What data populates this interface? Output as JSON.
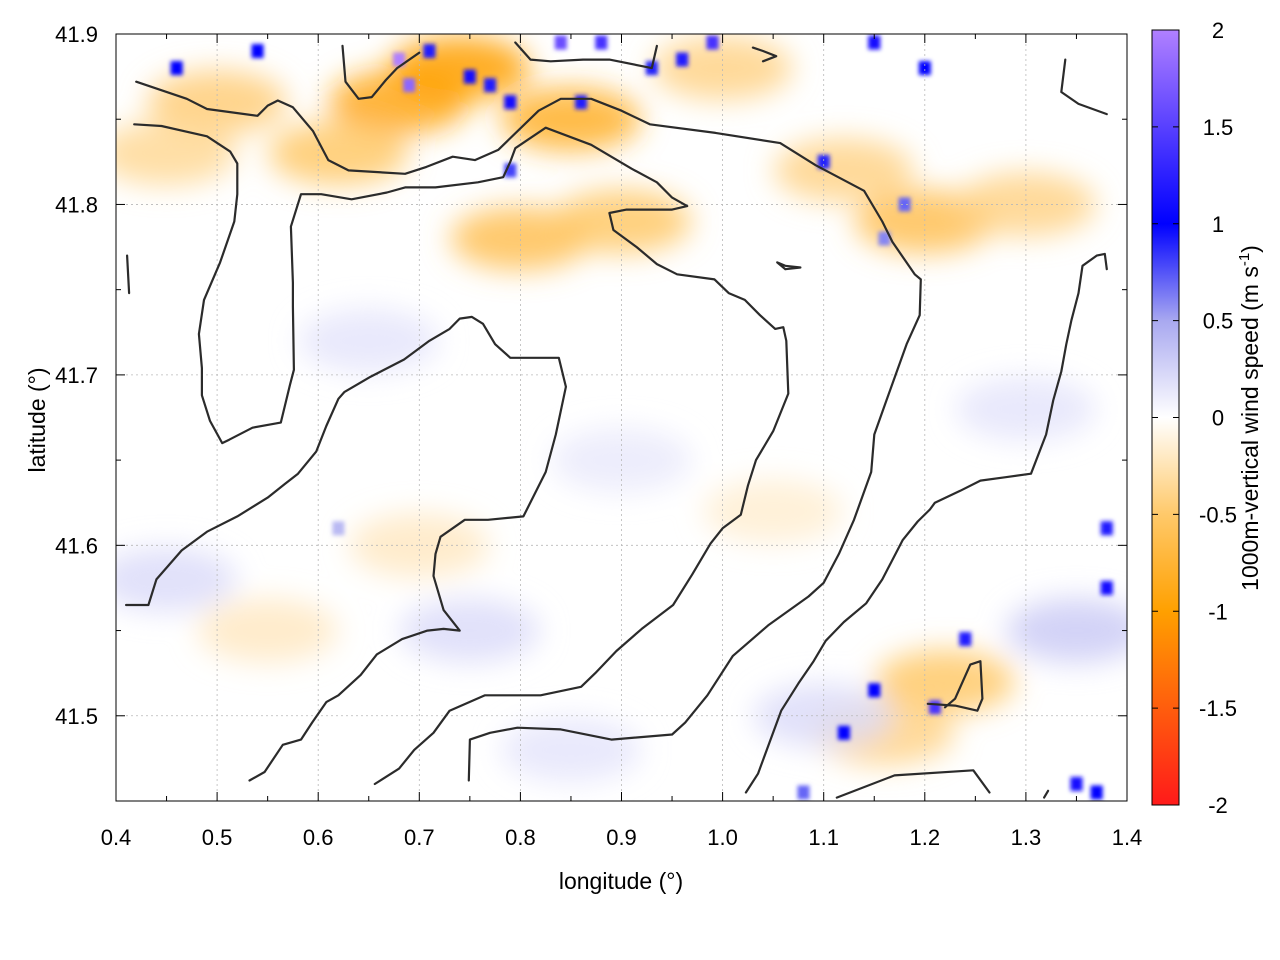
{
  "chart_data": {
    "type": "heatmap",
    "xlabel": "longitude (°)",
    "ylabel": "latitude (°)",
    "colorbar_label": {
      "main": "1000m-vertical wind speed (m s",
      "superscript": "-1",
      "close": ")"
    },
    "xlim": [
      0.4,
      1.4
    ],
    "ylim": [
      41.45,
      41.9
    ],
    "x_ticks": [
      "0.4",
      "0.5",
      "0.6",
      "0.7",
      "0.8",
      "0.9",
      "1.0",
      "1.1",
      "1.2",
      "1.3",
      "1.4"
    ],
    "x_tick_values": [
      0.4,
      0.5,
      0.6,
      0.7,
      0.8,
      0.9,
      1.0,
      1.1,
      1.2,
      1.3,
      1.4
    ],
    "y_ticks": [
      "41.5",
      "41.6",
      "41.7",
      "41.8",
      "41.9"
    ],
    "y_tick_values": [
      41.5,
      41.6,
      41.7,
      41.8,
      41.9
    ],
    "colorbar_ticks": [
      "2",
      "1.5",
      "1",
      "0.5",
      "0",
      "-0.5",
      "-1",
      "-1.5",
      "-2"
    ],
    "colorbar_tick_values": [
      2,
      1.5,
      1,
      0.5,
      0,
      -0.5,
      -1,
      -1.5,
      -2
    ],
    "color_range": [
      -2,
      2
    ],
    "colormap": [
      {
        "value": -2.0,
        "color": "#ff1a1a"
      },
      {
        "value": -1.0,
        "color": "#ffa000"
      },
      {
        "value": -0.5,
        "color": "#ffc96a"
      },
      {
        "value": 0.0,
        "color": "#ffffff"
      },
      {
        "value": 0.5,
        "color": "#a8a8f0"
      },
      {
        "value": 1.0,
        "color": "#0000ff"
      },
      {
        "value": 2.0,
        "color": "#b080ff"
      }
    ],
    "grid": true,
    "field_hotspots": [
      {
        "x": 0.68,
        "y": 41.86,
        "value": -0.9
      },
      {
        "x": 0.74,
        "y": 41.88,
        "value": -1.0
      },
      {
        "x": 0.85,
        "y": 41.85,
        "value": -0.8
      },
      {
        "x": 0.62,
        "y": 41.83,
        "value": -0.5
      },
      {
        "x": 0.8,
        "y": 41.78,
        "value": -0.6
      },
      {
        "x": 0.9,
        "y": 41.79,
        "value": -0.5
      },
      {
        "x": 1.2,
        "y": 41.79,
        "value": -0.6
      },
      {
        "x": 1.12,
        "y": 41.82,
        "value": -0.4
      },
      {
        "x": 1.3,
        "y": 41.8,
        "value": -0.4
      },
      {
        "x": 0.5,
        "y": 41.86,
        "value": -0.45
      },
      {
        "x": 0.45,
        "y": 41.83,
        "value": -0.35
      },
      {
        "x": 1.0,
        "y": 41.88,
        "value": -0.4
      },
      {
        "x": 1.22,
        "y": 41.52,
        "value": -0.5
      },
      {
        "x": 1.16,
        "y": 41.49,
        "value": -0.4
      },
      {
        "x": 0.7,
        "y": 41.6,
        "value": -0.2
      },
      {
        "x": 0.55,
        "y": 41.55,
        "value": -0.2
      },
      {
        "x": 1.05,
        "y": 41.62,
        "value": -0.15
      },
      {
        "x": 0.65,
        "y": 41.72,
        "value": 0.15
      },
      {
        "x": 0.75,
        "y": 41.55,
        "value": 0.2
      },
      {
        "x": 0.45,
        "y": 41.58,
        "value": 0.2
      },
      {
        "x": 0.9,
        "y": 41.65,
        "value": 0.12
      },
      {
        "x": 1.35,
        "y": 41.55,
        "value": 0.3
      },
      {
        "x": 1.3,
        "y": 41.68,
        "value": 0.15
      },
      {
        "x": 1.1,
        "y": 41.5,
        "value": 0.2
      },
      {
        "x": 0.85,
        "y": 41.48,
        "value": 0.15
      }
    ],
    "field_specks": [
      {
        "x": 0.68,
        "y": 41.885,
        "value": 2.0
      },
      {
        "x": 0.69,
        "y": 41.87,
        "value": 1.8
      },
      {
        "x": 0.71,
        "y": 41.89,
        "value": 1.2
      },
      {
        "x": 0.75,
        "y": 41.875,
        "value": 1.1
      },
      {
        "x": 0.77,
        "y": 41.87,
        "value": 1.2
      },
      {
        "x": 0.79,
        "y": 41.86,
        "value": 1.1
      },
      {
        "x": 0.84,
        "y": 41.895,
        "value": 1.6
      },
      {
        "x": 0.88,
        "y": 41.895,
        "value": 1.4
      },
      {
        "x": 0.86,
        "y": 41.86,
        "value": 1.2
      },
      {
        "x": 0.46,
        "y": 41.88,
        "value": 1.0
      },
      {
        "x": 0.54,
        "y": 41.89,
        "value": 1.0
      },
      {
        "x": 0.93,
        "y": 41.88,
        "value": 0.9
      },
      {
        "x": 0.96,
        "y": 41.885,
        "value": 1.2
      },
      {
        "x": 0.99,
        "y": 41.895,
        "value": 1.4
      },
      {
        "x": 1.15,
        "y": 41.895,
        "value": 1.1
      },
      {
        "x": 1.2,
        "y": 41.88,
        "value": 1.0
      },
      {
        "x": 1.1,
        "y": 41.825,
        "value": 0.9
      },
      {
        "x": 1.18,
        "y": 41.8,
        "value": 0.7
      },
      {
        "x": 1.16,
        "y": 41.78,
        "value": 0.6
      },
      {
        "x": 0.79,
        "y": 41.82,
        "value": 0.8
      },
      {
        "x": 1.38,
        "y": 41.61,
        "value": 1.2
      },
      {
        "x": 1.38,
        "y": 41.575,
        "value": 1.1
      },
      {
        "x": 1.24,
        "y": 41.545,
        "value": 1.2
      },
      {
        "x": 1.15,
        "y": 41.515,
        "value": 1.0
      },
      {
        "x": 1.21,
        "y": 41.505,
        "value": 1.4
      },
      {
        "x": 1.12,
        "y": 41.49,
        "value": 1.0
      },
      {
        "x": 1.35,
        "y": 41.46,
        "value": 1.1
      },
      {
        "x": 1.37,
        "y": 41.455,
        "value": 1.0
      },
      {
        "x": 1.08,
        "y": 41.455,
        "value": 0.7
      },
      {
        "x": 0.62,
        "y": 41.61,
        "value": 0.4
      }
    ],
    "contours": [
      [
        [
          0.42,
          41.872
        ],
        [
          0.47,
          41.862
        ],
        [
          0.49,
          41.856
        ],
        [
          0.54,
          41.852
        ],
        [
          0.55,
          41.858
        ],
        [
          0.56,
          41.861
        ],
        [
          0.575,
          41.857
        ],
        [
          0.595,
          41.843
        ],
        [
          0.61,
          41.826
        ],
        [
          0.63,
          41.82
        ],
        [
          0.686,
          41.818
        ],
        [
          0.707,
          41.822
        ],
        [
          0.733,
          41.828
        ],
        [
          0.755,
          41.826
        ],
        [
          0.778,
          41.832
        ],
        [
          0.818,
          41.855
        ],
        [
          0.84,
          41.862
        ],
        [
          0.87,
          41.862
        ],
        [
          0.9,
          41.855
        ],
        [
          0.928,
          41.847
        ],
        [
          0.993,
          41.842
        ],
        [
          1.057,
          41.836
        ],
        [
          1.092,
          41.823
        ],
        [
          1.14,
          41.808
        ],
        [
          1.158,
          41.79
        ],
        [
          1.168,
          41.778
        ],
        [
          1.19,
          41.759
        ],
        [
          1.196,
          41.756
        ],
        [
          1.195,
          41.735
        ],
        [
          1.182,
          41.718
        ],
        [
          1.162,
          41.685
        ],
        [
          1.15,
          41.665
        ],
        [
          1.147,
          41.643
        ],
        [
          1.13,
          41.615
        ],
        [
          1.115,
          41.595
        ],
        [
          1.1,
          41.578
        ],
        [
          1.085,
          41.57
        ],
        [
          1.045,
          41.553
        ],
        [
          1.01,
          41.535
        ],
        [
          0.985,
          41.512
        ],
        [
          0.963,
          41.496
        ],
        [
          0.95,
          41.489
        ],
        [
          0.89,
          41.486
        ],
        [
          0.84,
          41.492
        ],
        [
          0.797,
          41.493
        ],
        [
          0.77,
          41.49
        ],
        [
          0.75,
          41.486
        ],
        [
          0.749,
          41.462
        ]
      ],
      [
        [
          0.418,
          41.847
        ],
        [
          0.445,
          41.846
        ],
        [
          0.49,
          41.84
        ],
        [
          0.513,
          41.831
        ],
        [
          0.52,
          41.824
        ],
        [
          0.52,
          41.806
        ],
        [
          0.517,
          41.79
        ],
        [
          0.503,
          41.766
        ],
        [
          0.487,
          41.744
        ],
        [
          0.482,
          41.724
        ],
        [
          0.485,
          41.704
        ],
        [
          0.485,
          41.688
        ],
        [
          0.493,
          41.673
        ],
        [
          0.505,
          41.66
        ],
        [
          0.512,
          41.662
        ],
        [
          0.535,
          41.669
        ],
        [
          0.563,
          41.672
        ],
        [
          0.572,
          41.694
        ],
        [
          0.576,
          41.703
        ],
        [
          0.575,
          41.74
        ],
        [
          0.575,
          41.754
        ],
        [
          0.573,
          41.787
        ],
        [
          0.583,
          41.806
        ],
        [
          0.603,
          41.806
        ],
        [
          0.633,
          41.803
        ],
        [
          0.668,
          41.807
        ],
        [
          0.686,
          41.81
        ],
        [
          0.716,
          41.81
        ],
        [
          0.758,
          41.813
        ],
        [
          0.783,
          41.816
        ],
        [
          0.79,
          41.825
        ],
        [
          0.795,
          41.833
        ],
        [
          0.825,
          41.845
        ],
        [
          0.87,
          41.835
        ],
        [
          0.91,
          41.821
        ],
        [
          0.935,
          41.813
        ],
        [
          0.95,
          41.804
        ],
        [
          0.965,
          41.799
        ],
        [
          0.95,
          41.797
        ],
        [
          0.93,
          41.797
        ],
        [
          0.905,
          41.797
        ],
        [
          0.888,
          41.795
        ],
        [
          0.892,
          41.785
        ],
        [
          0.915,
          41.775
        ],
        [
          0.935,
          41.765
        ],
        [
          0.955,
          41.759
        ],
        [
          0.992,
          41.756
        ],
        [
          1.006,
          41.748
        ],
        [
          1.022,
          41.744
        ],
        [
          1.037,
          41.735
        ],
        [
          1.052,
          41.727
        ],
        [
          1.06,
          41.728
        ],
        [
          1.063,
          41.72
        ],
        [
          1.065,
          41.689
        ],
        [
          1.05,
          41.667
        ],
        [
          1.033,
          41.65
        ],
        [
          1.025,
          41.635
        ],
        [
          1.018,
          41.618
        ],
        [
          1.0,
          41.61
        ],
        [
          0.988,
          41.601
        ],
        [
          0.97,
          41.583
        ],
        [
          0.951,
          41.565
        ],
        [
          0.92,
          41.551
        ],
        [
          0.895,
          41.538
        ],
        [
          0.874,
          41.525
        ],
        [
          0.86,
          41.517
        ],
        [
          0.82,
          41.512
        ],
        [
          0.765,
          41.512
        ],
        [
          0.73,
          41.503
        ],
        [
          0.714,
          41.49
        ],
        [
          0.695,
          41.48
        ],
        [
          0.68,
          41.469
        ],
        [
          0.656,
          41.46
        ]
      ],
      [
        [
          0.532,
          41.462
        ],
        [
          0.547,
          41.467
        ],
        [
          0.565,
          41.483
        ],
        [
          0.583,
          41.486
        ],
        [
          0.594,
          41.496
        ],
        [
          0.608,
          41.508
        ],
        [
          0.62,
          41.512
        ],
        [
          0.642,
          41.524
        ],
        [
          0.658,
          41.536
        ],
        [
          0.683,
          41.545
        ],
        [
          0.708,
          41.55
        ],
        [
          0.724,
          41.551
        ],
        [
          0.74,
          41.55
        ],
        [
          0.724,
          41.562
        ],
        [
          0.714,
          41.582
        ],
        [
          0.716,
          41.595
        ],
        [
          0.721,
          41.605
        ],
        [
          0.745,
          41.615
        ],
        [
          0.768,
          41.615
        ],
        [
          0.803,
          41.617
        ],
        [
          0.825,
          41.643
        ],
        [
          0.835,
          41.665
        ],
        [
          0.845,
          41.693
        ],
        [
          0.838,
          41.71
        ],
        [
          0.79,
          41.71
        ],
        [
          0.775,
          41.718
        ],
        [
          0.763,
          41.73
        ],
        [
          0.752,
          41.734
        ],
        [
          0.74,
          41.733
        ],
        [
          0.73,
          41.727
        ],
        [
          0.71,
          41.72
        ],
        [
          0.685,
          41.709
        ],
        [
          0.652,
          41.699
        ],
        [
          0.626,
          41.69
        ],
        [
          0.62,
          41.686
        ],
        [
          0.608,
          41.67
        ],
        [
          0.598,
          41.655
        ],
        [
          0.58,
          41.642
        ],
        [
          0.567,
          41.636
        ],
        [
          0.55,
          41.628
        ],
        [
          0.52,
          41.617
        ],
        [
          0.49,
          41.608
        ],
        [
          0.465,
          41.597
        ],
        [
          0.44,
          41.58
        ],
        [
          0.432,
          41.565
        ],
        [
          0.41,
          41.565
        ]
      ],
      [
        [
          1.023,
          41.455
        ],
        [
          1.035,
          41.466
        ],
        [
          1.058,
          41.503
        ],
        [
          1.075,
          41.519
        ],
        [
          1.09,
          41.532
        ],
        [
          1.102,
          41.544
        ],
        [
          1.12,
          41.555
        ],
        [
          1.142,
          41.566
        ],
        [
          1.158,
          41.58
        ],
        [
          1.178,
          41.603
        ],
        [
          1.193,
          41.614
        ],
        [
          1.205,
          41.621
        ],
        [
          1.21,
          41.625
        ],
        [
          1.235,
          41.632
        ],
        [
          1.255,
          41.638
        ],
        [
          1.28,
          41.64
        ],
        [
          1.305,
          41.642
        ],
        [
          1.32,
          41.665
        ],
        [
          1.327,
          41.685
        ],
        [
          1.335,
          41.702
        ],
        [
          1.34,
          41.718
        ],
        [
          1.345,
          41.732
        ],
        [
          1.352,
          41.748
        ],
        [
          1.356,
          41.764
        ],
        [
          1.37,
          41.77
        ],
        [
          1.378,
          41.771
        ],
        [
          1.38,
          41.762
        ]
      ],
      [
        [
          0.624,
          41.893
        ],
        [
          0.627,
          41.872
        ],
        [
          0.64,
          41.862
        ],
        [
          0.653,
          41.863
        ],
        [
          0.667,
          41.873
        ],
        [
          0.678,
          41.88
        ],
        [
          0.7,
          41.889
        ]
      ],
      [
        [
          0.795,
          41.895
        ],
        [
          0.81,
          41.885
        ],
        [
          0.83,
          41.884
        ],
        [
          0.862,
          41.885
        ],
        [
          0.888,
          41.885
        ],
        [
          0.93,
          41.88
        ],
        [
          0.935,
          41.893
        ]
      ],
      [
        [
          1.062,
          41.762
        ],
        [
          1.077,
          41.763
        ],
        [
          1.062,
          41.764
        ],
        [
          1.054,
          41.766
        ],
        [
          1.062,
          41.762
        ]
      ],
      [
        [
          1.203,
          41.507
        ],
        [
          1.23,
          41.506
        ],
        [
          1.252,
          41.503
        ],
        [
          1.257,
          41.51
        ],
        [
          1.255,
          41.532
        ],
        [
          1.245,
          41.53
        ],
        [
          1.23,
          41.51
        ],
        [
          1.22,
          41.505
        ]
      ],
      [
        [
          1.113,
          41.452
        ],
        [
          1.17,
          41.465
        ],
        [
          1.248,
          41.468
        ],
        [
          1.264,
          41.455
        ]
      ],
      [
        [
          1.339,
          41.885
        ],
        [
          1.335,
          41.866
        ],
        [
          1.352,
          41.859
        ],
        [
          1.38,
          41.853
        ]
      ],
      [
        [
          0.411,
          41.77
        ],
        [
          0.413,
          41.748
        ]
      ],
      [
        [
          1.03,
          41.892
        ],
        [
          1.04,
          41.89
        ],
        [
          1.053,
          41.887
        ],
        [
          1.04,
          41.884
        ]
      ],
      [
        [
          1.318,
          41.452
        ],
        [
          1.322,
          41.456
        ]
      ]
    ]
  }
}
